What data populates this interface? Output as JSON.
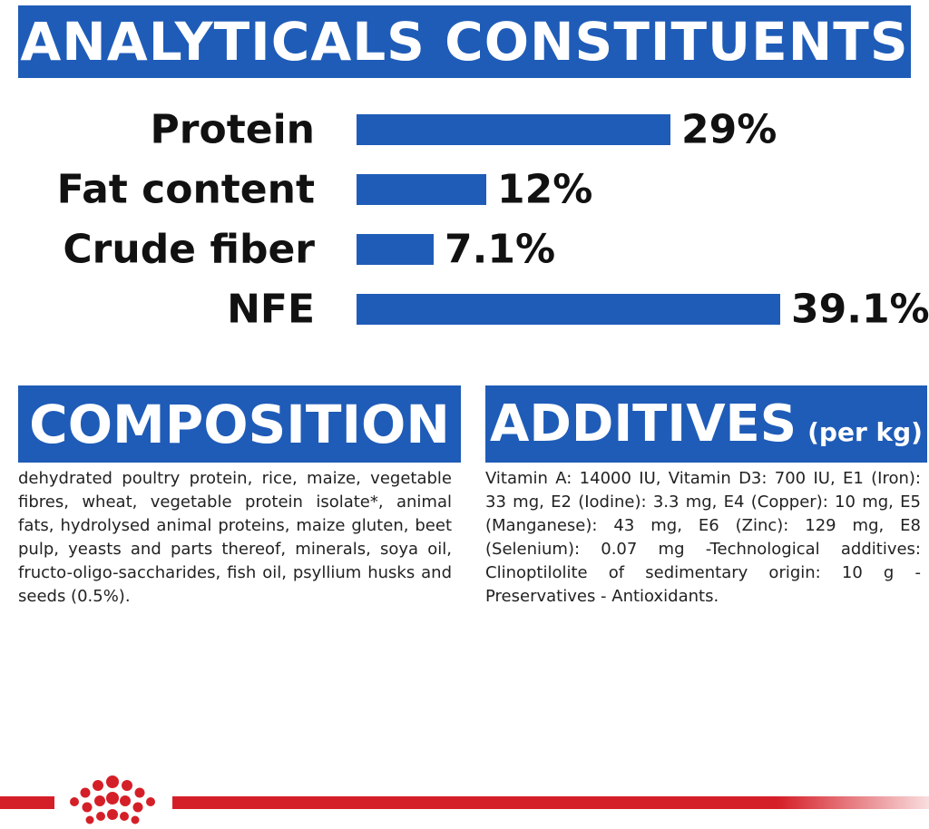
{
  "headers": {
    "analyticals": "ANALYTICALS CONSTITUENTS",
    "composition": "COMPOSITION",
    "additives": "ADDITIVES",
    "additives_suffix": "(per kg)"
  },
  "chart_data": {
    "type": "bar",
    "orientation": "horizontal",
    "title": "ANALYTICALS CONSTITUENTS",
    "categories": [
      "Protein",
      "Fat content",
      "Crude fiber",
      "NFE"
    ],
    "values": [
      29,
      12,
      7.1,
      39.1
    ],
    "value_labels": [
      "29%",
      "12%",
      "7.1%",
      "39.1%"
    ],
    "xlim": [
      0,
      39.1
    ],
    "grid": false,
    "bar_color": "#1f5cb8"
  },
  "composition_text": "dehydrated poultry protein, rice, maize, vegetable fibres, wheat, vegetable protein isolate*, animal fats, hydrolysed animal proteins, maize gluten, beet pulp, yeasts and parts thereof, minerals, soya oil, fructo-oligo-saccharides, fish oil, psyllium husks and seeds (0.5%).",
  "additives_text": "Vitamin A: 14000 IU, Vitamin D3: 700 IU, E1 (Iron): 33 mg, E2 (Iodine): 3.3 mg, E4 (Copper): 10 mg, E5 (Manganese): 43 mg, E6 (Zinc): 129 mg, E8 (Selenium): 0.07 mg -Technological additives: Clinoptilolite of sedimentary origin: 10 g - Preservatives - Antioxidants.",
  "colors": {
    "brand_blue": "#1f5cb8",
    "brand_red": "#d51f28"
  },
  "logo": {
    "icon": "crown-icon"
  }
}
